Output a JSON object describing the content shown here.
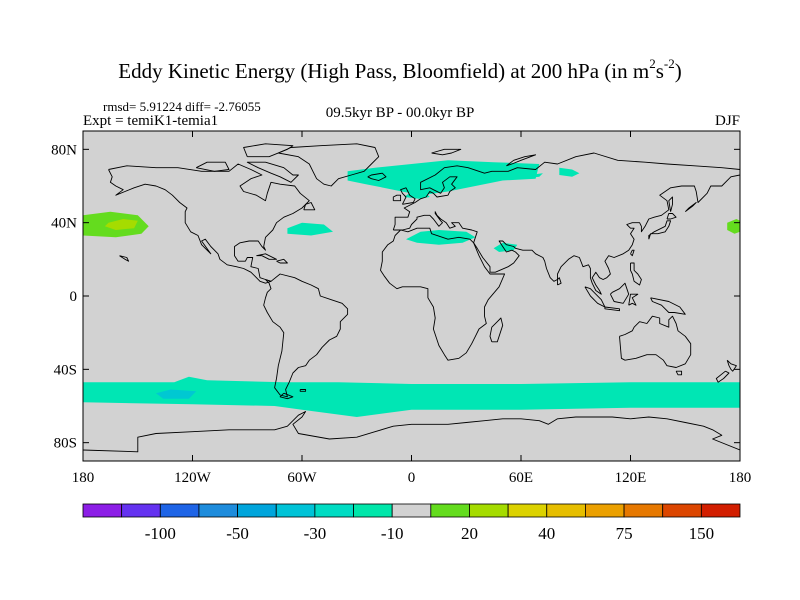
{
  "title": {
    "main": "Eddy Kinetic Energy (High Pass, Bloomfield) at 200 hPa (in m",
    "sup1": "2",
    "mid": "s",
    "sup2": "-2",
    "end": ")"
  },
  "stats": "rmsd= 5.91224 diff= -2.76055",
  "experiment": "Expt = temiK1-temia1",
  "period": "09.5kyr BP - 00.0kyr BP",
  "season": "DJF",
  "chart_data": {
    "type": "heatmap",
    "projection": "cylindrical-equidistant",
    "xlim": [
      -180,
      180
    ],
    "ylim": [
      -90,
      90
    ],
    "x_ticks": [
      {
        "value": -180,
        "label": "180"
      },
      {
        "value": -120,
        "label": "120W"
      },
      {
        "value": -60,
        "label": "60W"
      },
      {
        "value": 0,
        "label": "0"
      },
      {
        "value": 60,
        "label": "60E"
      },
      {
        "value": 120,
        "label": "120E"
      },
      {
        "value": 180,
        "label": "180"
      }
    ],
    "y_ticks": [
      {
        "value": 80,
        "label": "80N"
      },
      {
        "value": 40,
        "label": "40N"
      },
      {
        "value": 0,
        "label": "0"
      },
      {
        "value": -40,
        "label": "40S"
      },
      {
        "value": -80,
        "label": "80S"
      }
    ],
    "background_color": "#d2d2d2",
    "regions": [
      {
        "name": "southern-ocean-band",
        "level": -10,
        "color": "#00e6b4",
        "points": [
          [
            -180,
            -47
          ],
          [
            -130,
            -47
          ],
          [
            -122,
            -44
          ],
          [
            -112,
            -46
          ],
          [
            -70,
            -47
          ],
          [
            -40,
            -47
          ],
          [
            0,
            -48
          ],
          [
            60,
            -48
          ],
          [
            120,
            -47
          ],
          [
            180,
            -47
          ],
          [
            180,
            -61
          ],
          [
            120,
            -61
          ],
          [
            60,
            -62
          ],
          [
            0,
            -62
          ],
          [
            -30,
            -66
          ],
          [
            -60,
            -62
          ],
          [
            -75,
            -60
          ],
          [
            -120,
            -59
          ],
          [
            -180,
            -58
          ]
        ]
      },
      {
        "name": "south-pacific-core",
        "level": -30,
        "color": "#00c8d2",
        "points": [
          [
            -140,
            -53
          ],
          [
            -132,
            -51
          ],
          [
            -118,
            -52
          ],
          [
            -122,
            -56
          ],
          [
            -136,
            -56
          ]
        ]
      },
      {
        "name": "north-atlantic-europe",
        "level": -10,
        "color": "#00e6b4",
        "points": [
          [
            -35,
            68
          ],
          [
            -20,
            70
          ],
          [
            0,
            72
          ],
          [
            20,
            74
          ],
          [
            45,
            73
          ],
          [
            70,
            72
          ],
          [
            68,
            64
          ],
          [
            50,
            63
          ],
          [
            35,
            60
          ],
          [
            20,
            57
          ],
          [
            5,
            55
          ],
          [
            -10,
            58
          ],
          [
            -25,
            61
          ],
          [
            -35,
            63
          ]
        ]
      },
      {
        "name": "east-atlantic-patch",
        "level": -10,
        "color": "#00e6b4",
        "points": [
          [
            -4,
            54
          ],
          [
            4,
            53
          ],
          [
            10,
            54
          ],
          [
            8,
            56
          ],
          [
            0,
            57
          ]
        ]
      },
      {
        "name": "siberia-patch",
        "level": -10,
        "color": "#00e6b4",
        "points": [
          [
            81,
            70
          ],
          [
            88,
            69
          ],
          [
            92,
            67
          ],
          [
            88,
            65
          ],
          [
            81,
            66
          ]
        ]
      },
      {
        "name": "barents-patch",
        "level": -10,
        "color": "#00e6b4",
        "points": [
          [
            54,
            67
          ],
          [
            64,
            66
          ],
          [
            72,
            67
          ],
          [
            70,
            65
          ],
          [
            60,
            64
          ],
          [
            54,
            65
          ]
        ]
      },
      {
        "name": "north-atlantic-subtropics",
        "level": -10,
        "color": "#00e6b4",
        "points": [
          [
            -68,
            37
          ],
          [
            -60,
            40
          ],
          [
            -48,
            39
          ],
          [
            -43,
            35
          ],
          [
            -55,
            33
          ],
          [
            -68,
            34
          ]
        ]
      },
      {
        "name": "north-africa-mediterranean",
        "level": -10,
        "color": "#00e6b4",
        "points": [
          [
            -3,
            31
          ],
          [
            5,
            35
          ],
          [
            15,
            36
          ],
          [
            30,
            35
          ],
          [
            35,
            32
          ],
          [
            28,
            29
          ],
          [
            15,
            28
          ],
          [
            3,
            29
          ]
        ]
      },
      {
        "name": "arabia-patch",
        "level": -10,
        "color": "#00e6b4",
        "points": [
          [
            45,
            26
          ],
          [
            50,
            29
          ],
          [
            58,
            28
          ],
          [
            56,
            25
          ],
          [
            48,
            24
          ]
        ]
      },
      {
        "name": "central-north-pacific",
        "level": 20,
        "color": "#64dc1e",
        "points": [
          [
            -180,
            44
          ],
          [
            -165,
            46
          ],
          [
            -150,
            44
          ],
          [
            -144,
            38
          ],
          [
            -148,
            34
          ],
          [
            -162,
            32
          ],
          [
            -180,
            33
          ]
        ]
      },
      {
        "name": "central-north-pacific-core",
        "level": 30,
        "color": "#a5dc00",
        "points": [
          [
            -166,
            40
          ],
          [
            -158,
            42
          ],
          [
            -150,
            41
          ],
          [
            -152,
            37
          ],
          [
            -162,
            36
          ],
          [
            -168,
            38
          ]
        ]
      },
      {
        "name": "dateline-west-patch",
        "level": 20,
        "color": "#64dc1e",
        "points": [
          [
            173,
            40
          ],
          [
            178,
            42
          ],
          [
            180,
            41
          ],
          [
            180,
            35
          ],
          [
            177,
            34
          ],
          [
            173,
            36
          ]
        ]
      }
    ],
    "colorbar": {
      "levels": [
        "-100",
        "-50",
        "-30",
        "-10",
        "20",
        "40",
        "75",
        "150"
      ],
      "colors": [
        "#8c1ee6",
        "#6432f0",
        "#1e64e6",
        "#1e8cdc",
        "#00a5dc",
        "#00c3d7",
        "#00dcc3",
        "#00e6aa",
        "#d2d2d2",
        "#64dc1e",
        "#a5dc00",
        "#dcd200",
        "#e6be00",
        "#eba000",
        "#e67800",
        "#dc4600",
        "#d21e00"
      ]
    }
  }
}
